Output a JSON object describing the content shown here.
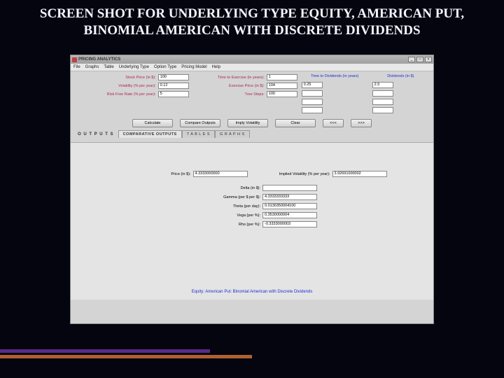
{
  "slide": {
    "title": "SCREEN SHOT FOR UNDERLYING TYPE EQUITY, AMERICAN PUT, BINOMIAL AMERICAN WITH DISCRETE DIVIDENDS"
  },
  "window": {
    "title": "PRICING ANALYTICS"
  },
  "menu": {
    "items": [
      "File",
      "Graphs",
      "Table",
      "Underlying Type",
      "Option Type",
      "Pricing Model",
      "Help"
    ]
  },
  "inputs": {
    "col1": {
      "stock_price_lbl": "Stock Price (in $):",
      "stock_price": "100",
      "volatility_lbl": "Volatility (% per year):",
      "volatility": "0.12",
      "risk_free_lbl": "Risk Free Rate (% per year):",
      "risk_free": "5"
    },
    "col2": {
      "time_exercise_lbl": "Time to Exercise (in years):",
      "time_exercise": "1",
      "exercise_price_lbl": "Exercise Price (in $):",
      "exercise_price": "104",
      "tree_steps_lbl": "Tree Steps:",
      "tree_steps": "100"
    },
    "col3": {
      "header": "Time to Dividends (in years)",
      "v1": "0.25"
    },
    "col4": {
      "header": "Dividends (in $)",
      "v1": "2.5"
    }
  },
  "buttons": {
    "calculate": "Calculate",
    "compare": "Compare Outputs",
    "imply": "Imply Volatility",
    "clear": "Clear",
    "prev": "<<<",
    "next": ">>>"
  },
  "tabs": {
    "outputs": "O U T P U T S",
    "t1": "COMPARATIVE OUTPUTS",
    "t2": "T A B L E S",
    "t3": "G R A P H S"
  },
  "outputs": {
    "price_lbl": "Price (in $):",
    "price": "4.3333000000",
    "iv_lbl": "Implied Volatility (% per year):",
    "iv": "3.92691000002",
    "delta_lbl": "Delta (in $):",
    "delta": "",
    "gamma_lbl": "Gamma (per $ per $):",
    "gamma": "4.3333333333",
    "theta_lbl": "Theta (per day):",
    "theta": "0.0130350004100",
    "vega_lbl": "Vega (per %):",
    "vega": "0.3530000004",
    "rho_lbl": "Rho (per %):",
    "rho": "-0.3333000003"
  },
  "footer": {
    "text": "Equity: American Put: Binomial American with Discrete Dividends"
  },
  "decor": {
    "bar1_color": "#5a2a88",
    "bar2_color": "#b06030"
  }
}
